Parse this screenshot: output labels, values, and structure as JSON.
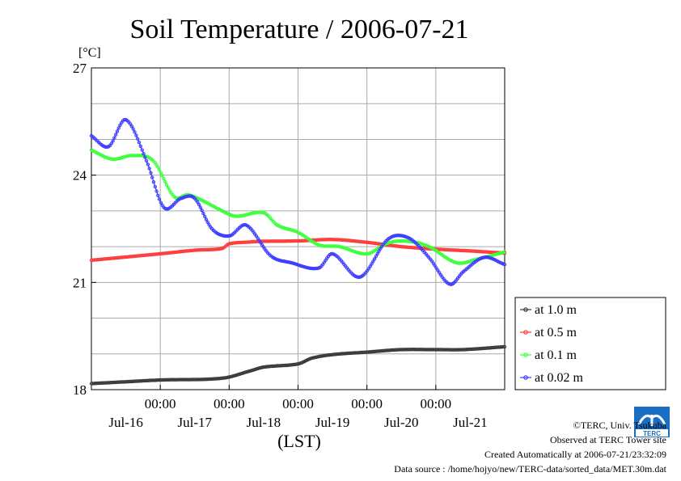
{
  "chart_data": {
    "type": "line",
    "title": "Soil Temperature / 2006-07-21",
    "unit_label": "[°C]",
    "xlabel": "(LST)",
    "ylim": [
      18,
      27
    ],
    "yticks": [
      18,
      21,
      24,
      27
    ],
    "xlim": [
      0,
      6
    ],
    "x_unit": "days since start of plotted period",
    "x_ticks": [
      {
        "x": 1,
        "time": "00:00",
        "date": "Jul-17"
      },
      {
        "x": 2,
        "time": "00:00",
        "date": "Jul-18"
      },
      {
        "x": 3,
        "time": "00:00",
        "date": "Jul-19"
      },
      {
        "x": 4,
        "time": "00:00",
        "date": "Jul-20"
      },
      {
        "x": 5,
        "time": "00:00",
        "date": "Jul-21"
      }
    ],
    "date_labels": [
      {
        "x": 0.5,
        "text": "Jul-16"
      },
      {
        "x": 1.5,
        "text": "Jul-17"
      },
      {
        "x": 2.5,
        "text": "Jul-18"
      },
      {
        "x": 3.5,
        "text": "Jul-19"
      },
      {
        "x": 4.5,
        "text": "Jul-20"
      },
      {
        "x": 5.5,
        "text": "Jul-21"
      }
    ],
    "grid": true,
    "legend_position": "bottom-right outside",
    "series": [
      {
        "name": "at 1.0 m",
        "color": "#3a3a3a",
        "x": [
          0,
          0.5,
          1.0,
          1.9,
          2.3,
          2.5,
          3.0,
          3.2,
          3.5,
          4.0,
          4.5,
          5.0,
          5.4,
          6.0
        ],
        "y": [
          18.17,
          18.22,
          18.27,
          18.32,
          18.52,
          18.63,
          18.72,
          18.88,
          18.98,
          19.05,
          19.12,
          19.12,
          19.12,
          19.2
        ]
      },
      {
        "name": "at 0.5 m",
        "color": "#ff3b3b",
        "x": [
          0,
          0.5,
          1.0,
          1.5,
          1.9,
          2.0,
          2.3,
          2.5,
          3.0,
          3.5,
          4.0,
          4.5,
          5.0,
          5.5,
          6.0
        ],
        "y": [
          21.62,
          21.71,
          21.8,
          21.9,
          21.95,
          22.08,
          22.13,
          22.15,
          22.16,
          22.2,
          22.12,
          22.0,
          21.93,
          21.88,
          21.82
        ]
      },
      {
        "name": "at 0.1 m",
        "color": "#3cff3c",
        "x": [
          0,
          0.3,
          0.6,
          0.9,
          1.2,
          1.4,
          1.6,
          1.9,
          2.1,
          2.5,
          2.7,
          3.0,
          3.3,
          3.6,
          4.0,
          4.3,
          4.6,
          4.9,
          5.3,
          5.6,
          6.0
        ],
        "y": [
          24.7,
          24.45,
          24.55,
          24.4,
          23.4,
          23.45,
          23.3,
          23.0,
          22.85,
          22.95,
          22.6,
          22.4,
          22.05,
          22.0,
          21.8,
          22.1,
          22.15,
          22.0,
          21.55,
          21.65,
          21.85
        ]
      },
      {
        "name": "at 0.02 m",
        "color": "#3c3cff",
        "x": [
          0,
          0.25,
          0.5,
          0.8,
          1.05,
          1.3,
          1.5,
          1.75,
          2.0,
          2.25,
          2.6,
          2.9,
          3.3,
          3.5,
          3.9,
          4.3,
          4.6,
          4.9,
          5.2,
          5.4,
          5.7,
          6.0
        ],
        "y": [
          25.1,
          24.8,
          25.55,
          24.4,
          23.1,
          23.35,
          23.35,
          22.5,
          22.3,
          22.6,
          21.75,
          21.55,
          21.4,
          21.8,
          21.15,
          22.2,
          22.25,
          21.7,
          20.95,
          21.3,
          21.7,
          21.5
        ]
      }
    ]
  },
  "footer": {
    "copyright": "©TERC, Univ. Tsukuba",
    "observed": "Observed at TERC Tower site",
    "created": "Created Automatically at 2006-07-21/23:32:09",
    "source": "Data source : /home/hojyo/new/TERC-data/sorted_data/MET.30m.dat"
  },
  "logo": {
    "text": "TERC",
    "color": "#1a6fc4"
  }
}
